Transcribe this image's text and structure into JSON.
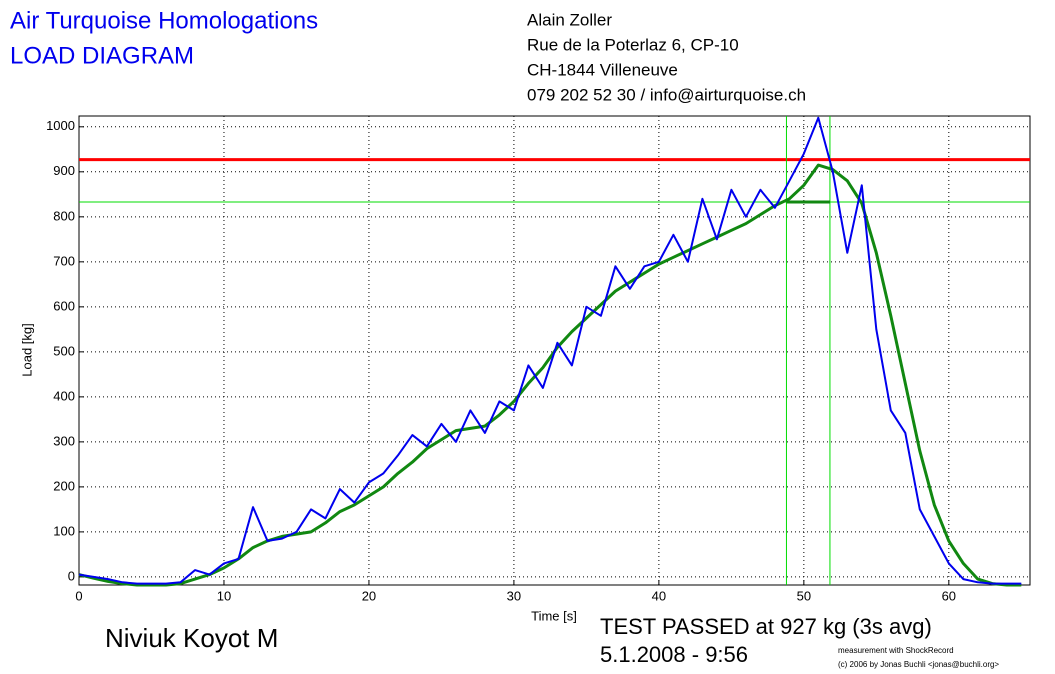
{
  "chart_data": {
    "type": "line",
    "title": "Air Turquoise Homologations",
    "subtitle": "LOAD DIAGRAM",
    "address": [
      "Alain Zoller",
      "Rue de la Poterlaz 6, CP-10",
      "CH-1844 Villeneuve",
      "079 202 52 30 / info@airturquoise.ch"
    ],
    "glider": "Niviuk Koyot M",
    "result": "TEST PASSED at 927 kg (3s avg)",
    "date": "5.1.2008 - 9:56",
    "credits": [
      "measurement with ShockRecord",
      "(c) 2006 by Jonas Buchli <jonas@buchli.org>"
    ],
    "x_label": "Time [s]",
    "y_label": "Load [kg]",
    "xlim": [
      0,
      65.6
    ],
    "ylim": [
      -18,
      1024
    ],
    "xticks": [
      0,
      10,
      20,
      30,
      40,
      50,
      60
    ],
    "yticks": [
      0,
      100,
      200,
      300,
      400,
      500,
      600,
      700,
      800,
      900,
      1000
    ],
    "grid": true,
    "x": [
      0,
      1,
      2,
      3,
      4,
      5,
      6,
      7,
      8,
      9,
      10,
      11,
      12,
      13,
      14,
      15,
      16,
      17,
      18,
      19,
      20,
      21,
      22,
      23,
      24,
      25,
      26,
      27,
      28,
      29,
      30,
      31,
      32,
      33,
      34,
      35,
      36,
      37,
      38,
      39,
      40,
      41,
      42,
      43,
      44,
      45,
      46,
      47,
      48,
      49,
      50,
      51,
      52,
      53,
      54,
      55,
      56,
      57,
      58,
      59,
      60,
      61,
      62,
      63,
      64,
      65
    ],
    "series": [
      {
        "name": "Load",
        "color": "#0000ee",
        "width": 2,
        "values": [
          5,
          0,
          -5,
          -12,
          -15,
          -15,
          -15,
          -12,
          15,
          5,
          30,
          40,
          155,
          80,
          85,
          100,
          150,
          130,
          195,
          165,
          210,
          230,
          270,
          315,
          290,
          340,
          300,
          370,
          320,
          390,
          370,
          470,
          420,
          520,
          470,
          600,
          580,
          690,
          640,
          690,
          700,
          760,
          700,
          840,
          750,
          860,
          800,
          860,
          820,
          880,
          940,
          1020,
          900,
          720,
          870,
          550,
          370,
          320,
          150,
          90,
          30,
          -5,
          -12,
          -15,
          -15,
          -15
        ]
      },
      {
        "name": "3s average",
        "color": "#118811",
        "width": 3,
        "values": [
          5,
          -3,
          -10,
          -15,
          -18,
          -18,
          -18,
          -15,
          -5,
          5,
          20,
          40,
          65,
          80,
          90,
          95,
          100,
          120,
          145,
          160,
          180,
          200,
          230,
          255,
          285,
          305,
          325,
          330,
          335,
          360,
          390,
          430,
          465,
          510,
          545,
          575,
          605,
          635,
          655,
          675,
          695,
          710,
          725,
          740,
          755,
          770,
          785,
          805,
          825,
          840,
          870,
          915,
          905,
          880,
          830,
          720,
          580,
          430,
          280,
          160,
          80,
          30,
          -5,
          -15,
          -18,
          -18
        ]
      }
    ],
    "hlines": [
      {
        "value": 927,
        "color": "#ff0000"
      },
      {
        "value": 833,
        "color": "#00dd00"
      }
    ],
    "vlines": [
      {
        "value": 48.8,
        "color": "#00dd00"
      },
      {
        "value": 51.8,
        "color": "#00dd00"
      }
    ]
  }
}
